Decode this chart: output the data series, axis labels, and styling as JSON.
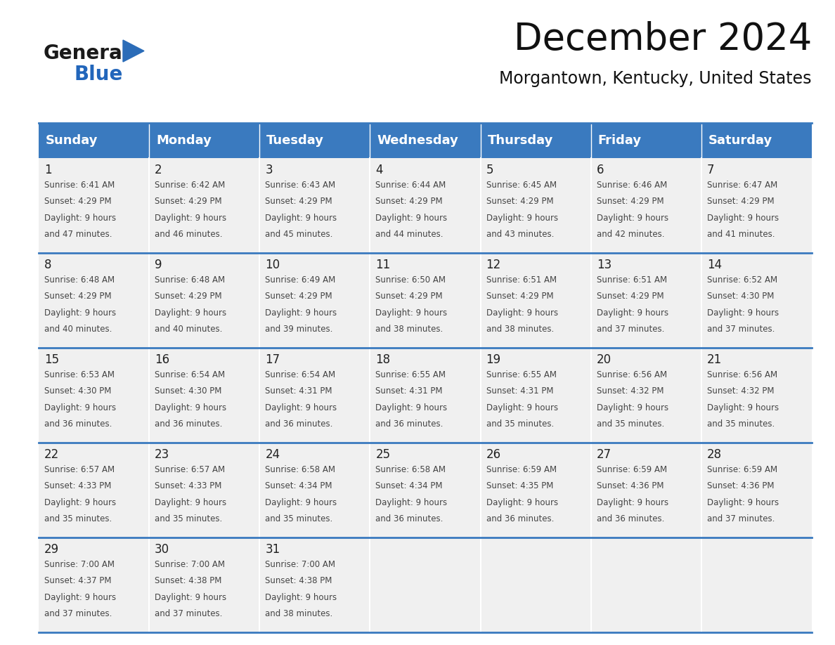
{
  "title": "December 2024",
  "subtitle": "Morgantown, Kentucky, United States",
  "header_color": "#3a7abf",
  "header_text_color": "#ffffff",
  "background_color": "#ffffff",
  "cell_bg": "#f0f0f0",
  "days_of_week": [
    "Sunday",
    "Monday",
    "Tuesday",
    "Wednesday",
    "Thursday",
    "Friday",
    "Saturday"
  ],
  "weeks": [
    [
      {
        "day": 1,
        "sunrise": "6:41 AM",
        "sunset": "4:29 PM",
        "daylight": "9 hours and 47 minutes."
      },
      {
        "day": 2,
        "sunrise": "6:42 AM",
        "sunset": "4:29 PM",
        "daylight": "9 hours and 46 minutes."
      },
      {
        "day": 3,
        "sunrise": "6:43 AM",
        "sunset": "4:29 PM",
        "daylight": "9 hours and 45 minutes."
      },
      {
        "day": 4,
        "sunrise": "6:44 AM",
        "sunset": "4:29 PM",
        "daylight": "9 hours and 44 minutes."
      },
      {
        "day": 5,
        "sunrise": "6:45 AM",
        "sunset": "4:29 PM",
        "daylight": "9 hours and 43 minutes."
      },
      {
        "day": 6,
        "sunrise": "6:46 AM",
        "sunset": "4:29 PM",
        "daylight": "9 hours and 42 minutes."
      },
      {
        "day": 7,
        "sunrise": "6:47 AM",
        "sunset": "4:29 PM",
        "daylight": "9 hours and 41 minutes."
      }
    ],
    [
      {
        "day": 8,
        "sunrise": "6:48 AM",
        "sunset": "4:29 PM",
        "daylight": "9 hours and 40 minutes."
      },
      {
        "day": 9,
        "sunrise": "6:48 AM",
        "sunset": "4:29 PM",
        "daylight": "9 hours and 40 minutes."
      },
      {
        "day": 10,
        "sunrise": "6:49 AM",
        "sunset": "4:29 PM",
        "daylight": "9 hours and 39 minutes."
      },
      {
        "day": 11,
        "sunrise": "6:50 AM",
        "sunset": "4:29 PM",
        "daylight": "9 hours and 38 minutes."
      },
      {
        "day": 12,
        "sunrise": "6:51 AM",
        "sunset": "4:29 PM",
        "daylight": "9 hours and 38 minutes."
      },
      {
        "day": 13,
        "sunrise": "6:51 AM",
        "sunset": "4:29 PM",
        "daylight": "9 hours and 37 minutes."
      },
      {
        "day": 14,
        "sunrise": "6:52 AM",
        "sunset": "4:30 PM",
        "daylight": "9 hours and 37 minutes."
      }
    ],
    [
      {
        "day": 15,
        "sunrise": "6:53 AM",
        "sunset": "4:30 PM",
        "daylight": "9 hours and 36 minutes."
      },
      {
        "day": 16,
        "sunrise": "6:54 AM",
        "sunset": "4:30 PM",
        "daylight": "9 hours and 36 minutes."
      },
      {
        "day": 17,
        "sunrise": "6:54 AM",
        "sunset": "4:31 PM",
        "daylight": "9 hours and 36 minutes."
      },
      {
        "day": 18,
        "sunrise": "6:55 AM",
        "sunset": "4:31 PM",
        "daylight": "9 hours and 36 minutes."
      },
      {
        "day": 19,
        "sunrise": "6:55 AM",
        "sunset": "4:31 PM",
        "daylight": "9 hours and 35 minutes."
      },
      {
        "day": 20,
        "sunrise": "6:56 AM",
        "sunset": "4:32 PM",
        "daylight": "9 hours and 35 minutes."
      },
      {
        "day": 21,
        "sunrise": "6:56 AM",
        "sunset": "4:32 PM",
        "daylight": "9 hours and 35 minutes."
      }
    ],
    [
      {
        "day": 22,
        "sunrise": "6:57 AM",
        "sunset": "4:33 PM",
        "daylight": "9 hours and 35 minutes."
      },
      {
        "day": 23,
        "sunrise": "6:57 AM",
        "sunset": "4:33 PM",
        "daylight": "9 hours and 35 minutes."
      },
      {
        "day": 24,
        "sunrise": "6:58 AM",
        "sunset": "4:34 PM",
        "daylight": "9 hours and 35 minutes."
      },
      {
        "day": 25,
        "sunrise": "6:58 AM",
        "sunset": "4:34 PM",
        "daylight": "9 hours and 36 minutes."
      },
      {
        "day": 26,
        "sunrise": "6:59 AM",
        "sunset": "4:35 PM",
        "daylight": "9 hours and 36 minutes."
      },
      {
        "day": 27,
        "sunrise": "6:59 AM",
        "sunset": "4:36 PM",
        "daylight": "9 hours and 36 minutes."
      },
      {
        "day": 28,
        "sunrise": "6:59 AM",
        "sunset": "4:36 PM",
        "daylight": "9 hours and 37 minutes."
      }
    ],
    [
      {
        "day": 29,
        "sunrise": "7:00 AM",
        "sunset": "4:37 PM",
        "daylight": "9 hours and 37 minutes."
      },
      {
        "day": 30,
        "sunrise": "7:00 AM",
        "sunset": "4:38 PM",
        "daylight": "9 hours and 37 minutes."
      },
      {
        "day": 31,
        "sunrise": "7:00 AM",
        "sunset": "4:38 PM",
        "daylight": "9 hours and 38 minutes."
      },
      null,
      null,
      null,
      null
    ]
  ],
  "logo_color_general": "#1a1a1a",
  "logo_color_blue": "#2266bb",
  "logo_triangle_color": "#2b6cb8",
  "title_fontsize": 38,
  "subtitle_fontsize": 17,
  "day_header_fontsize": 13,
  "day_num_fontsize": 12,
  "cell_text_fontsize": 8.5
}
